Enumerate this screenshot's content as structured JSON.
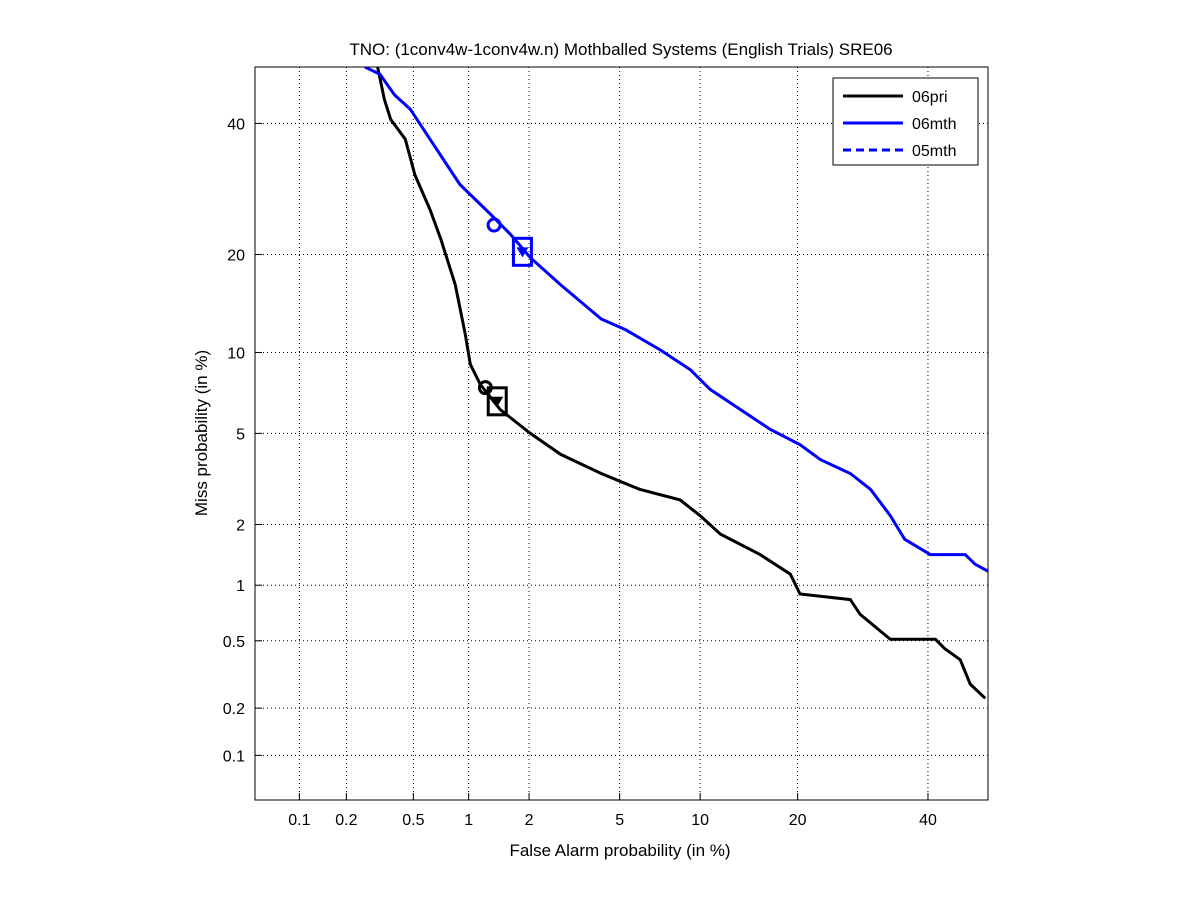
{
  "chart_data": {
    "type": "line",
    "title": "TNO: (1conv4w-1conv4w.n) Mothballed Systems (English Trials) SRE06",
    "xlabel": "False Alarm probability (in %)",
    "ylabel": "Miss probability (in %)",
    "scale": "probit (normal deviate)",
    "xlim": [
      0.05,
      50.7
    ],
    "ylim": [
      0.05,
      50
    ],
    "grid": true,
    "xticks": [
      "0.1",
      "0.2",
      "0.5",
      "1",
      "2",
      "5",
      "10",
      "20",
      "40"
    ],
    "yticks": [
      "0.1",
      "0.2",
      "0.5",
      "1",
      "2",
      "5",
      "10",
      "20",
      "40"
    ],
    "legend_position": "top-right",
    "series": [
      {
        "name": "06pri",
        "color": "#000000",
        "dash": false,
        "x": [
          0.31,
          0.34,
          0.37,
          0.45,
          0.51,
          0.62,
          0.71,
          0.85,
          0.96,
          1.02,
          1.15,
          1.45,
          2.03,
          2.8,
          4.2,
          6.0,
          8.5,
          10.0,
          11.7,
          15.6,
          19.1,
          20.3,
          27.3,
          28.8,
          33.6,
          41.3,
          43,
          45.7,
          47.5,
          50.2
        ],
        "y": [
          50,
          44.2,
          40.7,
          37.3,
          31.4,
          26.1,
          22,
          16.4,
          11.5,
          9.1,
          7.7,
          6.2,
          5.0,
          4.1,
          3.4,
          2.9,
          2.6,
          2.2,
          1.8,
          1.43,
          1.14,
          0.9,
          0.84,
          0.7,
          0.51,
          0.51,
          0.45,
          0.39,
          0.28,
          0.23
        ],
        "min_dcf": {
          "x": 1.22,
          "y": 7.5
        },
        "act_dcf": {
          "x": 1.4,
          "y": 6.7
        }
      },
      {
        "name": "06mth",
        "color": "#0000ff",
        "dash": false,
        "x": [
          0.26,
          0.32,
          0.39,
          0.48,
          0.62,
          0.9,
          1.3,
          1.63,
          2.03,
          2.8,
          4.2,
          5.3,
          7.2,
          9.25,
          10.8,
          13.6,
          16.7,
          20.3,
          23,
          27.3,
          30.4,
          33.6,
          36,
          40.4,
          46.6,
          48.4,
          50.7
        ],
        "y": [
          50,
          48.7,
          45,
          42.5,
          37.3,
          29.9,
          25.4,
          22.6,
          19.6,
          16.4,
          12.9,
          11.9,
          10.2,
          8.7,
          7.4,
          6.2,
          5.2,
          4.5,
          3.9,
          3.4,
          2.9,
          2.2,
          1.7,
          1.43,
          1.43,
          1.28,
          1.18
        ],
        "min_dcf": {
          "x": 1.35,
          "y": 23.9
        },
        "act_dcf": {
          "x": 1.86,
          "y": 20.4
        }
      },
      {
        "name": "05mth",
        "color": "#0000ff",
        "dash": true,
        "x": [],
        "y": []
      }
    ]
  }
}
